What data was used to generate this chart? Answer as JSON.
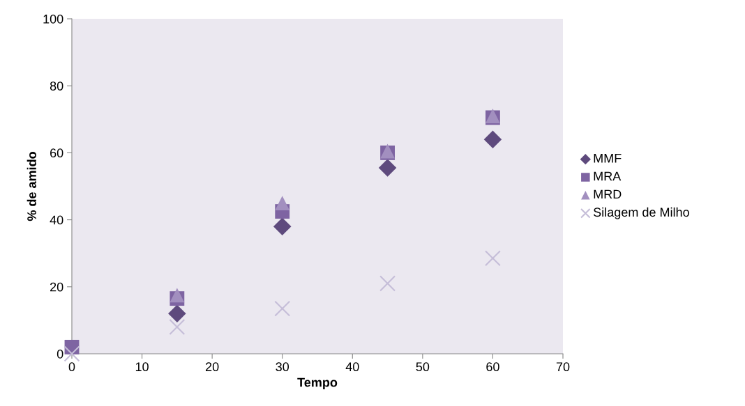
{
  "chart_data": {
    "type": "scatter",
    "xlabel": "Tempo",
    "ylabel": "% de amido",
    "xlim": [
      0,
      70
    ],
    "xticks": [
      0,
      10,
      20,
      30,
      40,
      50,
      60,
      70
    ],
    "ylim": [
      0,
      100
    ],
    "yticks": [
      0,
      20,
      40,
      60,
      80,
      100
    ],
    "grid": false,
    "legend": "right",
    "series": [
      {
        "name": "MMF",
        "color": "#5e4a7d",
        "marker": "diamond",
        "x": [
          15,
          30,
          45,
          60
        ],
        "values": [
          12,
          38,
          55.5,
          64
        ]
      },
      {
        "name": "MRA",
        "color": "#7e64a2",
        "marker": "square",
        "x": [
          0,
          15,
          30,
          45,
          60
        ],
        "values": [
          2,
          16.5,
          42.5,
          60,
          70.5
        ]
      },
      {
        "name": "MRD",
        "color": "#a28fbf",
        "marker": "triangle",
        "x": [
          15,
          30,
          45,
          60
        ],
        "values": [
          17.5,
          45,
          60.5,
          71
        ]
      },
      {
        "name": "Silagem de Milho",
        "color": "#c5bdd8",
        "marker": "cross",
        "x": [
          0,
          15,
          30,
          45,
          60
        ],
        "values": [
          0,
          8,
          13.5,
          21,
          28.5
        ]
      }
    ]
  }
}
